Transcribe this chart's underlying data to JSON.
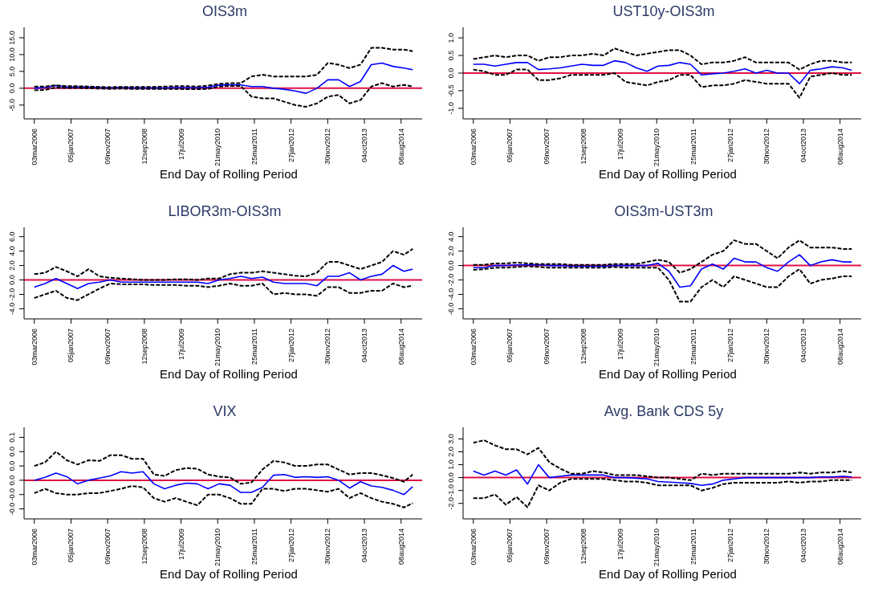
{
  "chart_data": [
    {
      "type": "line",
      "title": "OIS3m",
      "xlabel": "End Day of Rolling Period",
      "x": [
        "2006-03-03",
        "2006-06-01",
        "2006-09-01",
        "2006-12-01",
        "2007-03-01",
        "2007-06-01",
        "2007-09-01",
        "2007-12-01",
        "2008-03-01",
        "2008-06-01",
        "2008-09-01",
        "2008-12-01",
        "2009-03-01",
        "2009-06-01",
        "2009-09-01",
        "2009-12-01",
        "2010-03-01",
        "2010-06-01",
        "2010-09-01",
        "2010-12-01",
        "2011-03-01",
        "2011-06-01",
        "2011-09-01",
        "2011-12-01",
        "2012-03-01",
        "2012-06-01",
        "2012-09-01",
        "2012-12-01",
        "2013-03-01",
        "2013-06-01",
        "2013-09-01",
        "2013-12-01",
        "2014-03-01",
        "2014-06-01",
        "2014-09-01",
        "2014-11-14"
      ],
      "xlim": [
        "2005-12-07",
        "2015-02-01"
      ],
      "xticks": [
        {
          "value": "2006-03-03",
          "label": "03mar2006"
        },
        {
          "value": "2007-01-05",
          "label": "05jan2007"
        },
        {
          "value": "2007-11-09",
          "label": "09nov2007"
        },
        {
          "value": "2008-09-12",
          "label": "12sep2008"
        },
        {
          "value": "2009-07-17",
          "label": "17jul2009"
        },
        {
          "value": "2010-05-21",
          "label": "21may2010"
        },
        {
          "value": "2011-03-25",
          "label": "25mar2011"
        },
        {
          "value": "2012-01-27",
          "label": "27jan2012"
        },
        {
          "value": "2012-11-30",
          "label": "30nov2012"
        },
        {
          "value": "2013-10-04",
          "label": "04oct2013"
        },
        {
          "value": "2014-08-08",
          "label": "08aug2014"
        }
      ],
      "ylim": [
        -9.1,
        18.1
      ],
      "yticks": [
        {
          "value": -5,
          "label": "-5.0"
        },
        {
          "value": 0,
          "label": "0.0"
        },
        {
          "value": 5,
          "label": "5.0"
        },
        {
          "value": 10,
          "label": "10.0"
        },
        {
          "value": 15,
          "label": "15.0"
        }
      ],
      "ref_lines": [
        {
          "axis": "y",
          "value": 0,
          "color": "#dd1144"
        }
      ],
      "series": [
        {
          "color": "#0000ff",
          "line_style": "solid",
          "values": [
            0,
            0.2,
            0.8,
            0.3,
            0.4,
            0.3,
            0.2,
            0.1,
            0.2,
            0.1,
            0.1,
            0.1,
            0.1,
            0.2,
            0.2,
            0.2,
            0.3,
            0.9,
            1.0,
            1.0,
            0.5,
            0.5,
            0,
            -0.3,
            -0.8,
            -1.5,
            0,
            2.5,
            2.5,
            0.5,
            2.0,
            7.0,
            7.5,
            6.5,
            6.0,
            5.5
          ]
        },
        {
          "color": "#000000",
          "line_style": "dashed",
          "values": [
            0.5,
            0.5,
            0.9,
            0.6,
            0.6,
            0.5,
            0.4,
            0.3,
            0.4,
            0.4,
            0.4,
            0.4,
            0.5,
            0.6,
            0.6,
            0.5,
            0.8,
            1.3,
            1.5,
            1.5,
            3.5,
            4.0,
            3.5,
            3.5,
            3.5,
            3.5,
            4.0,
            7.5,
            7.0,
            6.0,
            7.0,
            12,
            12,
            11.5,
            11.5,
            11.0
          ]
        },
        {
          "color": "#000000",
          "line_style": "dashed",
          "values": [
            -0.6,
            -0.5,
            0.2,
            0.1,
            0.1,
            0,
            -0.1,
            -0.2,
            -0.1,
            -0.2,
            -0.2,
            -0.2,
            -0.2,
            -0.2,
            -0.3,
            -0.3,
            -0.2,
            0.5,
            0.7,
            0.7,
            -2.5,
            -3.0,
            -3.0,
            -4.0,
            -5.0,
            -5.5,
            -4.5,
            -2.5,
            -2.0,
            -4.5,
            -3.5,
            0.5,
            1.5,
            0.5,
            1.0,
            0.5
          ]
        }
      ]
    },
    {
      "type": "line",
      "title": "UST10y-OIS3m",
      "xlabel": "End Day of Rolling Period",
      "x": [
        "2006-03-03",
        "2006-06-01",
        "2006-09-01",
        "2006-12-01",
        "2007-03-01",
        "2007-06-01",
        "2007-09-01",
        "2007-12-01",
        "2008-03-01",
        "2008-06-01",
        "2008-09-01",
        "2008-12-01",
        "2009-03-01",
        "2009-06-01",
        "2009-09-01",
        "2009-12-01",
        "2010-03-01",
        "2010-06-01",
        "2010-09-01",
        "2010-12-01",
        "2011-03-01",
        "2011-06-01",
        "2011-09-01",
        "2011-12-01",
        "2012-03-01",
        "2012-06-01",
        "2012-09-01",
        "2012-12-01",
        "2013-03-01",
        "2013-06-01",
        "2013-09-01",
        "2013-12-01",
        "2014-03-01",
        "2014-06-01",
        "2014-09-01",
        "2014-11-14"
      ],
      "xlim": [
        "2005-12-07",
        "2015-02-01"
      ],
      "xticks": [
        {
          "value": "2006-03-03",
          "label": "03mar2006"
        },
        {
          "value": "2007-01-05",
          "label": "05jan2007"
        },
        {
          "value": "2007-11-09",
          "label": "09nov2007"
        },
        {
          "value": "2008-09-12",
          "label": "12sep2008"
        },
        {
          "value": "2009-07-17",
          "label": "17jul2009"
        },
        {
          "value": "2010-05-21",
          "label": "21may2010"
        },
        {
          "value": "2011-03-25",
          "label": "25mar2011"
        },
        {
          "value": "2012-01-27",
          "label": "27jan2012"
        },
        {
          "value": "2012-11-30",
          "label": "30nov2012"
        },
        {
          "value": "2013-10-04",
          "label": "04oct2013"
        },
        {
          "value": "2014-08-08",
          "label": "08aug2014"
        }
      ],
      "ylim": [
        -1.3,
        1.3
      ],
      "yticks": [
        {
          "value": -1,
          "label": "-1.0"
        },
        {
          "value": -0.5,
          "label": "-0.5"
        },
        {
          "value": 0,
          "label": "0.0"
        },
        {
          "value": 0.5,
          "label": "0.5"
        },
        {
          "value": 1,
          "label": "1.0"
        }
      ],
      "ref_lines": [
        {
          "axis": "y",
          "value": 0,
          "color": "#dd1144"
        }
      ],
      "series": [
        {
          "color": "#0000ff",
          "line_style": "solid",
          "values": [
            0.25,
            0.25,
            0.2,
            0.25,
            0.3,
            0.3,
            0.1,
            0.12,
            0.15,
            0.2,
            0.25,
            0.22,
            0.22,
            0.35,
            0.3,
            0.15,
            0.05,
            0.2,
            0.22,
            0.3,
            0.25,
            -0.05,
            -0.02,
            0.0,
            0.05,
            0.12,
            0.0,
            0.08,
            0.0,
            0.0,
            -0.3,
            0.08,
            0.12,
            0.18,
            0.15,
            0.08
          ]
        },
        {
          "color": "#000000",
          "line_style": "dashed",
          "values": [
            0.4,
            0.45,
            0.5,
            0.45,
            0.5,
            0.5,
            0.35,
            0.45,
            0.45,
            0.5,
            0.5,
            0.55,
            0.5,
            0.7,
            0.6,
            0.5,
            0.55,
            0.6,
            0.65,
            0.65,
            0.5,
            0.25,
            0.3,
            0.3,
            0.35,
            0.45,
            0.3,
            0.3,
            0.3,
            0.3,
            0.1,
            0.25,
            0.35,
            0.35,
            0.3,
            0.3
          ]
        },
        {
          "color": "#000000",
          "line_style": "dashed",
          "values": [
            0.1,
            0.05,
            -0.05,
            -0.05,
            0.1,
            0.1,
            -0.2,
            -0.2,
            -0.15,
            -0.05,
            -0.05,
            -0.05,
            -0.05,
            0.0,
            -0.25,
            -0.3,
            -0.35,
            -0.25,
            -0.2,
            -0.05,
            -0.05,
            -0.4,
            -0.35,
            -0.35,
            -0.3,
            -0.2,
            -0.25,
            -0.3,
            -0.3,
            -0.3,
            -0.7,
            -0.1,
            -0.05,
            0.0,
            -0.05,
            -0.05
          ]
        }
      ]
    },
    {
      "type": "line",
      "title": "LIBOR3m-OIS3m",
      "xlabel": "End Day of Rolling Period",
      "x": [
        "2006-03-03",
        "2006-06-01",
        "2006-09-01",
        "2006-12-01",
        "2007-03-01",
        "2007-06-01",
        "2007-09-01",
        "2007-12-01",
        "2008-03-01",
        "2008-06-01",
        "2008-09-01",
        "2008-12-01",
        "2009-03-01",
        "2009-06-01",
        "2009-09-01",
        "2009-12-01",
        "2010-03-01",
        "2010-06-01",
        "2010-09-01",
        "2010-12-01",
        "2011-03-01",
        "2011-06-01",
        "2011-09-01",
        "2011-12-01",
        "2012-03-01",
        "2012-06-01",
        "2012-09-01",
        "2012-12-01",
        "2013-03-01",
        "2013-06-01",
        "2013-09-01",
        "2013-12-01",
        "2014-03-01",
        "2014-06-01",
        "2014-09-01",
        "2014-11-14"
      ],
      "xlim": [
        "2005-12-07",
        "2015-02-01"
      ],
      "xticks": [
        {
          "value": "2006-03-03",
          "label": "03mar2006"
        },
        {
          "value": "2007-01-05",
          "label": "05jan2007"
        },
        {
          "value": "2007-11-09",
          "label": "09nov2007"
        },
        {
          "value": "2008-09-12",
          "label": "12sep2008"
        },
        {
          "value": "2009-07-17",
          "label": "17jul2009"
        },
        {
          "value": "2010-05-21",
          "label": "21may2010"
        },
        {
          "value": "2011-03-25",
          "label": "25mar2011"
        },
        {
          "value": "2012-01-27",
          "label": "27jan2012"
        },
        {
          "value": "2012-11-30",
          "label": "30nov2012"
        },
        {
          "value": "2013-10-04",
          "label": "04oct2013"
        },
        {
          "value": "2014-08-08",
          "label": "08aug2014"
        }
      ],
      "ylim": [
        -5.4,
        7.3
      ],
      "yticks": [
        {
          "value": -4,
          "label": "-4.0"
        },
        {
          "value": -2,
          "label": "-2.0"
        },
        {
          "value": 0,
          "label": "0.0"
        },
        {
          "value": 2,
          "label": "2.0"
        },
        {
          "value": 4,
          "label": "4.0"
        },
        {
          "value": 6,
          "label": "6.0"
        }
      ],
      "ref_lines": [
        {
          "axis": "y",
          "value": 0,
          "color": "#dd1144"
        }
      ],
      "series": [
        {
          "color": "#0000ff",
          "line_style": "solid",
          "values": [
            -1.0,
            -0.5,
            0.2,
            -0.5,
            -1.2,
            -0.5,
            -0.3,
            0.0,
            -0.3,
            -0.3,
            -0.3,
            -0.3,
            -0.3,
            -0.3,
            -0.3,
            -0.3,
            -0.5,
            0,
            0.2,
            0.5,
            0.2,
            0.4,
            -0.3,
            -0.5,
            -0.5,
            -0.5,
            -0.8,
            0.5,
            0.5,
            1.0,
            0.0,
            0.5,
            0.8,
            2.0,
            1.2,
            1.5
          ]
        },
        {
          "color": "#000000",
          "line_style": "dashed",
          "values": [
            0.8,
            1.0,
            1.8,
            1.2,
            0.5,
            1.5,
            0.5,
            0.3,
            0.2,
            0.1,
            0.0,
            0.0,
            0.0,
            0.1,
            0.1,
            0.0,
            0.2,
            0.2,
            0.8,
            1.0,
            1.0,
            1.2,
            1.0,
            0.8,
            0.6,
            0.5,
            1.0,
            2.5,
            2.5,
            2.0,
            1.5,
            2.0,
            2.5,
            4.0,
            3.5,
            4.3
          ]
        },
        {
          "color": "#000000",
          "line_style": "dashed",
          "values": [
            -2.5,
            -2.0,
            -1.5,
            -2.5,
            -2.8,
            -2.0,
            -1.2,
            -0.5,
            -0.6,
            -0.6,
            -0.6,
            -0.7,
            -0.7,
            -0.7,
            -0.8,
            -0.8,
            -1.0,
            -0.8,
            -0.5,
            -0.8,
            -0.8,
            -0.5,
            -2.0,
            -1.8,
            -2.0,
            -2.0,
            -2.2,
            -1.0,
            -1.0,
            -1.8,
            -1.8,
            -1.5,
            -1.5,
            -0.5,
            -1.0,
            -0.8
          ]
        }
      ]
    },
    {
      "type": "line",
      "title": "OIS3m-UST3m",
      "xlabel": "End Day of Rolling Period",
      "x": [
        "2006-03-03",
        "2006-06-01",
        "2006-09-01",
        "2006-12-01",
        "2007-03-01",
        "2007-06-01",
        "2007-09-01",
        "2007-12-01",
        "2008-03-01",
        "2008-06-01",
        "2008-09-01",
        "2008-12-01",
        "2009-03-01",
        "2009-06-01",
        "2009-09-01",
        "2009-12-01",
        "2010-03-01",
        "2010-06-01",
        "2010-09-01",
        "2010-12-01",
        "2011-03-01",
        "2011-06-01",
        "2011-09-01",
        "2011-12-01",
        "2012-03-01",
        "2012-06-01",
        "2012-09-01",
        "2012-12-01",
        "2013-03-01",
        "2013-06-01",
        "2013-09-01",
        "2013-12-01",
        "2014-03-01",
        "2014-06-01",
        "2014-09-01",
        "2014-11-14"
      ],
      "xlim": [
        "2005-12-07",
        "2015-02-01"
      ],
      "xticks": [
        {
          "value": "2006-03-03",
          "label": "03mar2006"
        },
        {
          "value": "2007-01-05",
          "label": "05jan2007"
        },
        {
          "value": "2007-11-09",
          "label": "09nov2007"
        },
        {
          "value": "2008-09-12",
          "label": "12sep2008"
        },
        {
          "value": "2009-07-17",
          "label": "17jul2009"
        },
        {
          "value": "2010-05-21",
          "label": "21may2010"
        },
        {
          "value": "2011-03-25",
          "label": "25mar2011"
        },
        {
          "value": "2012-01-27",
          "label": "27jan2012"
        },
        {
          "value": "2012-11-30",
          "label": "30nov2012"
        },
        {
          "value": "2013-10-04",
          "label": "04oct2013"
        },
        {
          "value": "2014-08-08",
          "label": "08aug2014"
        }
      ],
      "ylim": [
        -7.4,
        5.3
      ],
      "yticks": [
        {
          "value": -6,
          "label": "-6.0"
        },
        {
          "value": -4,
          "label": "-4.0"
        },
        {
          "value": -2,
          "label": "-2.0"
        },
        {
          "value": 0,
          "label": "0.0"
        },
        {
          "value": 2,
          "label": "2.0"
        },
        {
          "value": 4,
          "label": "4.0"
        }
      ],
      "ref_lines": [
        {
          "axis": "y",
          "value": 0,
          "color": "#dd1144"
        }
      ],
      "series": [
        {
          "color": "#0000ff",
          "line_style": "solid",
          "values": [
            -0.3,
            -0.3,
            0.0,
            0.0,
            0.1,
            0.1,
            0.1,
            0.0,
            0.0,
            -0.1,
            -0.1,
            -0.1,
            -0.1,
            0.0,
            0.0,
            0.0,
            0.0,
            0.3,
            -0.8,
            -3.0,
            -2.8,
            -0.5,
            0.2,
            -0.5,
            1.0,
            0.5,
            0.5,
            -0.3,
            -0.8,
            0.5,
            1.5,
            0.0,
            0.5,
            0.8,
            0.5,
            0.5
          ]
        },
        {
          "color": "#000000",
          "line_style": "dashed",
          "values": [
            0.1,
            0.1,
            0.3,
            0.3,
            0.4,
            0.3,
            0.2,
            0.2,
            0.2,
            0.1,
            0.1,
            0.1,
            0.1,
            0.2,
            0.2,
            0.2,
            0.5,
            0.8,
            0.5,
            -1.0,
            -0.5,
            0.5,
            1.5,
            2.0,
            3.5,
            3.0,
            3.0,
            2.0,
            1.0,
            2.5,
            3.5,
            2.5,
            2.5,
            2.5,
            2.3,
            2.3
          ]
        },
        {
          "color": "#000000",
          "line_style": "dashed",
          "values": [
            -0.6,
            -0.5,
            -0.3,
            -0.3,
            -0.2,
            -0.1,
            -0.2,
            -0.3,
            -0.3,
            -0.3,
            -0.3,
            -0.3,
            -0.3,
            -0.2,
            -0.3,
            -0.3,
            -0.3,
            -0.3,
            -2.0,
            -5.0,
            -5.0,
            -3.0,
            -2.0,
            -3.0,
            -1.5,
            -2.0,
            -2.5,
            -3.0,
            -3.0,
            -1.5,
            -0.5,
            -2.5,
            -2.0,
            -1.8,
            -1.5,
            -1.5
          ]
        }
      ]
    },
    {
      "type": "line",
      "title": "VIX",
      "xlabel": "End Day of Rolling Period",
      "x": [
        "2006-03-03",
        "2006-06-01",
        "2006-09-01",
        "2006-12-01",
        "2007-03-01",
        "2007-06-01",
        "2007-09-01",
        "2007-12-01",
        "2008-03-01",
        "2008-06-01",
        "2008-09-01",
        "2008-12-01",
        "2009-03-01",
        "2009-06-01",
        "2009-09-01",
        "2009-12-01",
        "2010-03-01",
        "2010-06-01",
        "2010-09-01",
        "2010-12-01",
        "2011-03-01",
        "2011-06-01",
        "2011-09-01",
        "2011-12-01",
        "2012-03-01",
        "2012-06-01",
        "2012-09-01",
        "2012-12-01",
        "2013-03-01",
        "2013-06-01",
        "2013-09-01",
        "2013-12-01",
        "2014-03-01",
        "2014-06-01",
        "2014-09-01",
        "2014-11-14"
      ],
      "xlim": [
        "2005-12-07",
        "2015-02-01"
      ],
      "xticks": [
        {
          "value": "2006-03-03",
          "label": "03mar2006"
        },
        {
          "value": "2007-01-05",
          "label": "05jan2007"
        },
        {
          "value": "2007-11-09",
          "label": "09nov2007"
        },
        {
          "value": "2008-09-12",
          "label": "12sep2008"
        },
        {
          "value": "2009-07-17",
          "label": "17jul2009"
        },
        {
          "value": "2010-05-21",
          "label": "21may2010"
        },
        {
          "value": "2011-03-25",
          "label": "25mar2011"
        },
        {
          "value": "2012-01-27",
          "label": "27jan2012"
        },
        {
          "value": "2012-11-30",
          "label": "30nov2012"
        },
        {
          "value": "2013-10-04",
          "label": "04oct2013"
        },
        {
          "value": "2014-08-08",
          "label": "08aug2014"
        }
      ],
      "ylim": [
        -0.054,
        0.074
      ],
      "yticks": [
        {
          "value": -0.04,
          "label": "-0.0"
        },
        {
          "value": -0.02,
          "label": "-0.0"
        },
        {
          "value": 0,
          "label": "0.0"
        },
        {
          "value": 0.02,
          "label": "0.0"
        },
        {
          "value": 0.04,
          "label": "0.0"
        },
        {
          "value": 0.06,
          "label": "0.1"
        }
      ],
      "ref_lines": [
        {
          "axis": "y",
          "value": 0,
          "color": "#dd1144"
        }
      ],
      "series": [
        {
          "color": "#0000ff",
          "line_style": "solid",
          "values": [
            0.0,
            0.004,
            0.01,
            0.005,
            -0.005,
            0.0,
            0.003,
            0.006,
            0.012,
            0.01,
            0.012,
            -0.005,
            -0.012,
            -0.007,
            -0.004,
            -0.005,
            -0.012,
            -0.005,
            -0.007,
            -0.017,
            -0.017,
            -0.01,
            0.007,
            0.008,
            0.004,
            0.005,
            0.004,
            0.005,
            0.0,
            -0.011,
            -0.002,
            -0.008,
            -0.01,
            -0.014,
            -0.02,
            -0.009
          ]
        },
        {
          "color": "#000000",
          "line_style": "dashed",
          "values": [
            0.02,
            0.025,
            0.04,
            0.028,
            0.022,
            0.028,
            0.027,
            0.035,
            0.035,
            0.03,
            0.03,
            0.008,
            0.006,
            0.014,
            0.017,
            0.016,
            0.008,
            0.005,
            0.004,
            -0.005,
            -0.003,
            0.015,
            0.027,
            0.025,
            0.02,
            0.02,
            0.022,
            0.022,
            0.015,
            0.008,
            0.01,
            0.01,
            0.007,
            0.003,
            -0.002,
            0.008
          ]
        },
        {
          "color": "#000000",
          "line_style": "dashed",
          "values": [
            -0.018,
            -0.012,
            -0.018,
            -0.02,
            -0.02,
            -0.018,
            -0.018,
            -0.015,
            -0.012,
            -0.008,
            -0.01,
            -0.025,
            -0.03,
            -0.025,
            -0.03,
            -0.035,
            -0.02,
            -0.02,
            -0.025,
            -0.033,
            -0.033,
            -0.012,
            -0.012,
            -0.015,
            -0.012,
            -0.012,
            -0.014,
            -0.016,
            -0.012,
            -0.025,
            -0.018,
            -0.025,
            -0.03,
            -0.033,
            -0.038,
            -0.032
          ]
        }
      ]
    },
    {
      "type": "line",
      "title": "Avg. Bank CDS 5y",
      "xlabel": "End Day of Rolling Period",
      "x": [
        "2006-03-03",
        "2006-06-01",
        "2006-09-01",
        "2006-12-01",
        "2007-03-01",
        "2007-06-01",
        "2007-09-01",
        "2007-12-01",
        "2008-03-01",
        "2008-06-01",
        "2008-09-01",
        "2008-12-01",
        "2009-03-01",
        "2009-06-01",
        "2009-09-01",
        "2009-12-01",
        "2010-03-01",
        "2010-06-01",
        "2010-09-01",
        "2010-12-01",
        "2011-03-01",
        "2011-06-01",
        "2011-09-01",
        "2011-12-01",
        "2012-03-01",
        "2012-06-01",
        "2012-09-01",
        "2012-12-01",
        "2013-03-01",
        "2013-06-01",
        "2013-09-01",
        "2013-12-01",
        "2014-03-01",
        "2014-06-01",
        "2014-09-01",
        "2014-11-14"
      ],
      "xlim": [
        "2005-12-07",
        "2015-02-01"
      ],
      "xticks": [
        {
          "value": "2006-03-03",
          "label": "03mar2006"
        },
        {
          "value": "2007-01-05",
          "label": "05jan2007"
        },
        {
          "value": "2007-11-09",
          "label": "09nov2007"
        },
        {
          "value": "2008-09-12",
          "label": "12sep2008"
        },
        {
          "value": "2009-07-17",
          "label": "17jul2009"
        },
        {
          "value": "2010-05-21",
          "label": "21may2010"
        },
        {
          "value": "2011-03-25",
          "label": "25mar2011"
        },
        {
          "value": "2012-01-27",
          "label": "27jan2012"
        },
        {
          "value": "2012-11-30",
          "label": "30nov2012"
        },
        {
          "value": "2013-10-04",
          "label": "04oct2013"
        },
        {
          "value": "2014-08-08",
          "label": "08aug2014"
        }
      ],
      "ylim": [
        -3.2,
        3.9
      ],
      "yticks": [
        {
          "value": -2,
          "label": "-2.0"
        },
        {
          "value": -1,
          "label": "-1.0"
        },
        {
          "value": 0,
          "label": "0.0"
        },
        {
          "value": 1,
          "label": "1.0"
        },
        {
          "value": 2,
          "label": "2.0"
        },
        {
          "value": 3,
          "label": "3.0"
        }
      ],
      "ref_lines": [
        {
          "axis": "y",
          "value": 0,
          "color": "#dd1144"
        }
      ],
      "series": [
        {
          "color": "#0000ff",
          "line_style": "solid",
          "values": [
            0.5,
            0.2,
            0.5,
            0.2,
            0.6,
            -0.5,
            1.0,
            0.0,
            0.1,
            0.2,
            0.2,
            0.2,
            0.2,
            0.0,
            0.0,
            -0.05,
            -0.1,
            -0.3,
            -0.35,
            -0.4,
            -0.45,
            -0.6,
            -0.5,
            -0.2,
            -0.1,
            0.0,
            0.0,
            0.0,
            0.0,
            0.0,
            0.0,
            0.0,
            0.05,
            0.05,
            0.1,
            0.05
          ]
        },
        {
          "color": "#000000",
          "line_style": "dashed",
          "values": [
            2.7,
            2.9,
            2.5,
            2.2,
            2.2,
            1.8,
            2.3,
            1.2,
            0.7,
            0.3,
            0.3,
            0.5,
            0.4,
            0.2,
            0.2,
            0.2,
            0.1,
            0.0,
            0.0,
            -0.1,
            -0.2,
            0.3,
            0.2,
            0.3,
            0.3,
            0.3,
            0.3,
            0.3,
            0.3,
            0.3,
            0.4,
            0.3,
            0.4,
            0.4,
            0.5,
            0.4
          ]
        },
        {
          "color": "#000000",
          "line_style": "dashed",
          "values": [
            -1.6,
            -1.6,
            -1.3,
            -2.1,
            -1.5,
            -2.3,
            -0.6,
            -1.0,
            -0.4,
            -0.1,
            -0.1,
            -0.1,
            -0.1,
            -0.2,
            -0.3,
            -0.3,
            -0.4,
            -0.6,
            -0.6,
            -0.6,
            -0.6,
            -1.0,
            -0.8,
            -0.5,
            -0.4,
            -0.4,
            -0.4,
            -0.4,
            -0.4,
            -0.3,
            -0.4,
            -0.3,
            -0.3,
            -0.2,
            -0.2,
            -0.2
          ]
        }
      ]
    }
  ]
}
